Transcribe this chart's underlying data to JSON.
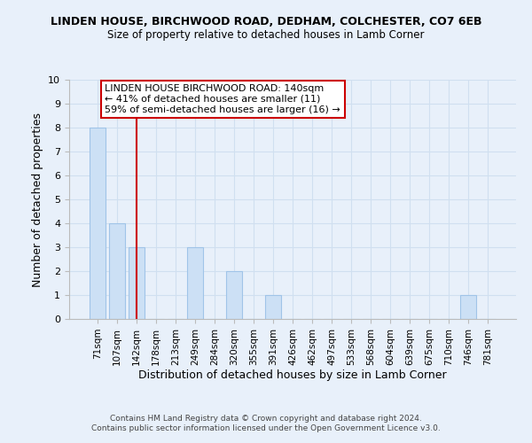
{
  "title": "LINDEN HOUSE, BIRCHWOOD ROAD, DEDHAM, COLCHESTER, CO7 6EB",
  "subtitle": "Size of property relative to detached houses in Lamb Corner",
  "xlabel": "Distribution of detached houses by size in Lamb Corner",
  "ylabel": "Number of detached properties",
  "bar_labels": [
    "71sqm",
    "107sqm",
    "142sqm",
    "178sqm",
    "213sqm",
    "249sqm",
    "284sqm",
    "320sqm",
    "355sqm",
    "391sqm",
    "426sqm",
    "462sqm",
    "497sqm",
    "533sqm",
    "568sqm",
    "604sqm",
    "639sqm",
    "675sqm",
    "710sqm",
    "746sqm",
    "781sqm"
  ],
  "bar_values": [
    8,
    4,
    3,
    0,
    0,
    3,
    0,
    2,
    0,
    1,
    0,
    0,
    0,
    0,
    0,
    0,
    0,
    0,
    0,
    1,
    0
  ],
  "bar_color": "#cce0f5",
  "bar_edge_color": "#a0c4e8",
  "highlight_index": 2,
  "highlight_line_color": "#cc0000",
  "ylim": [
    0,
    10
  ],
  "yticks": [
    0,
    1,
    2,
    3,
    4,
    5,
    6,
    7,
    8,
    9,
    10
  ],
  "annotation_title": "LINDEN HOUSE BIRCHWOOD ROAD: 140sqm",
  "annotation_line1": "← 41% of detached houses are smaller (11)",
  "annotation_line2": "59% of semi-detached houses are larger (16) →",
  "annotation_box_color": "#ffffff",
  "annotation_box_edge": "#cc0000",
  "footer_line1": "Contains HM Land Registry data © Crown copyright and database right 2024.",
  "footer_line2": "Contains public sector information licensed under the Open Government Licence v3.0.",
  "grid_color": "#d0dff0",
  "background_color": "#e8f0fa"
}
